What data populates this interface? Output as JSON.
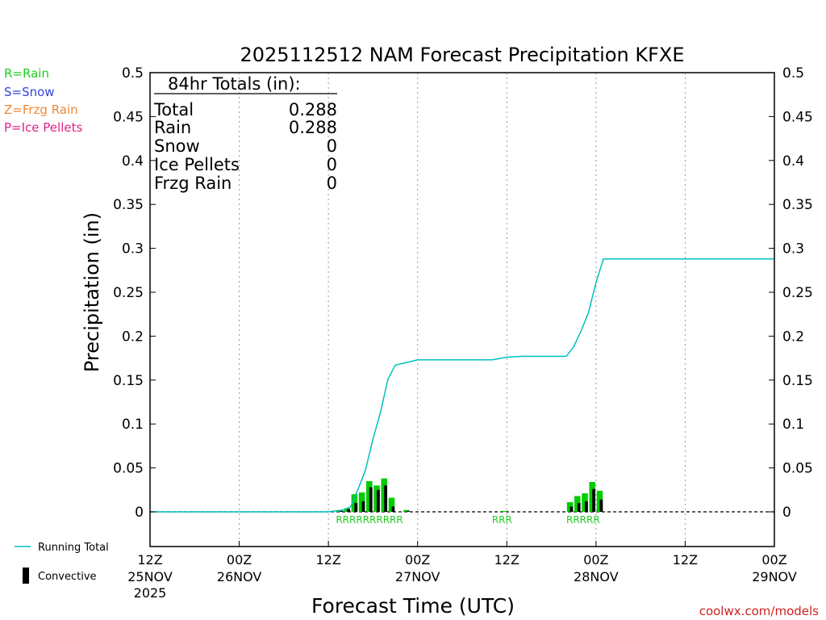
{
  "chart_data": {
    "type": "bar+line",
    "title": "2025112512 NAM Forecast Precipitation KFXE",
    "xlabel": "Forecast Time (UTC)",
    "ylabel": "Precipitation (in)",
    "ylim": [
      -0.04,
      0.5
    ],
    "y_ticks": [
      0,
      0.05,
      0.1,
      0.15,
      0.2,
      0.25,
      0.3,
      0.35,
      0.4,
      0.45,
      0.5
    ],
    "y_tick_labels": [
      "0",
      "0.05",
      "0.1",
      "0.15",
      "0.2",
      "0.25",
      "0.3",
      "0.35",
      "0.4",
      "0.45",
      "0.5"
    ],
    "xlim_hours": [
      0,
      84
    ],
    "x_ticks": [
      {
        "hour": 0,
        "label": "12Z",
        "sub": "25NOV",
        "sub2": "2025"
      },
      {
        "hour": 12,
        "label": "00Z",
        "sub": "26NOV",
        "sub2": ""
      },
      {
        "hour": 24,
        "label": "12Z",
        "sub": "",
        "sub2": ""
      },
      {
        "hour": 36,
        "label": "00Z",
        "sub": "27NOV",
        "sub2": ""
      },
      {
        "hour": 48,
        "label": "12Z",
        "sub": "",
        "sub2": ""
      },
      {
        "hour": 60,
        "label": "00Z",
        "sub": "28NOV",
        "sub2": ""
      },
      {
        "hour": 72,
        "label": "12Z",
        "sub": "",
        "sub2": ""
      },
      {
        "hour": 84,
        "label": "00Z",
        "sub": "29NOV",
        "sub2": ""
      }
    ],
    "grid": "vertical dotted",
    "legend_types": [
      {
        "label": "R=Rain",
        "color": "#22cc22"
      },
      {
        "label": "S=Snow",
        "color": "#3344dd"
      },
      {
        "label": "Z=Frzg Rain",
        "color": "#ee8833"
      },
      {
        "label": "P=Ice Pellets",
        "color": "#dd2288"
      }
    ],
    "legend_series": [
      {
        "label": "Running Total",
        "color": "#00c0c0"
      },
      {
        "label": "Convective",
        "color": "#000000"
      }
    ],
    "totals_box": {
      "heading": "84hr Totals (in):",
      "rows": [
        {
          "label": "Total",
          "value": "0.288"
        },
        {
          "label": "Rain",
          "value": "0.288"
        },
        {
          "label": "Snow",
          "value": "0"
        },
        {
          "label": "Ice Pellets",
          "value": "0"
        },
        {
          "label": "Frzg Rain",
          "value": "0"
        }
      ]
    },
    "bars": [
      {
        "hour": 26,
        "total": 0.002,
        "convective": 0.002
      },
      {
        "hour": 27,
        "total": 0.004,
        "convective": 0.003
      },
      {
        "hour": 28,
        "total": 0.02,
        "convective": 0.01
      },
      {
        "hour": 29,
        "total": 0.022,
        "convective": 0.012
      },
      {
        "hour": 30,
        "total": 0.035,
        "convective": 0.028
      },
      {
        "hour": 31,
        "total": 0.03,
        "convective": 0.025
      },
      {
        "hour": 32,
        "total": 0.038,
        "convective": 0.03
      },
      {
        "hour": 33,
        "total": 0.016,
        "convective": 0.006
      },
      {
        "hour": 35,
        "total": 0.002,
        "convective": 0.001
      },
      {
        "hour": 48,
        "total": 0.001,
        "convective": 0.0
      },
      {
        "hour": 57,
        "total": 0.011,
        "convective": 0.006
      },
      {
        "hour": 58,
        "total": 0.018,
        "convective": 0.01
      },
      {
        "hour": 59,
        "total": 0.021,
        "convective": 0.012
      },
      {
        "hour": 60,
        "total": 0.034,
        "convective": 0.026
      },
      {
        "hour": 61,
        "total": 0.024,
        "convective": 0.014
      }
    ],
    "running_total": {
      "hours": [
        0,
        24,
        26,
        27,
        28,
        29,
        30,
        31,
        32,
        33,
        34,
        35,
        36,
        46,
        48,
        50,
        56,
        57,
        58,
        59,
        60,
        61,
        78,
        84
      ],
      "values": [
        0,
        0,
        0.002,
        0.006,
        0.026,
        0.048,
        0.083,
        0.113,
        0.151,
        0.167,
        0.169,
        0.171,
        0.173,
        0.173,
        0.176,
        0.177,
        0.177,
        0.188,
        0.206,
        0.227,
        0.261,
        0.288,
        0.288,
        0.288
      ]
    },
    "type_labels": [
      {
        "start_hour": 26,
        "text": "RRRRRRRRRR"
      },
      {
        "start_hour": 47,
        "text": "RRR"
      },
      {
        "start_hour": 57,
        "text": "RRRRR"
      }
    ],
    "credit": "coolwx.com/models"
  }
}
